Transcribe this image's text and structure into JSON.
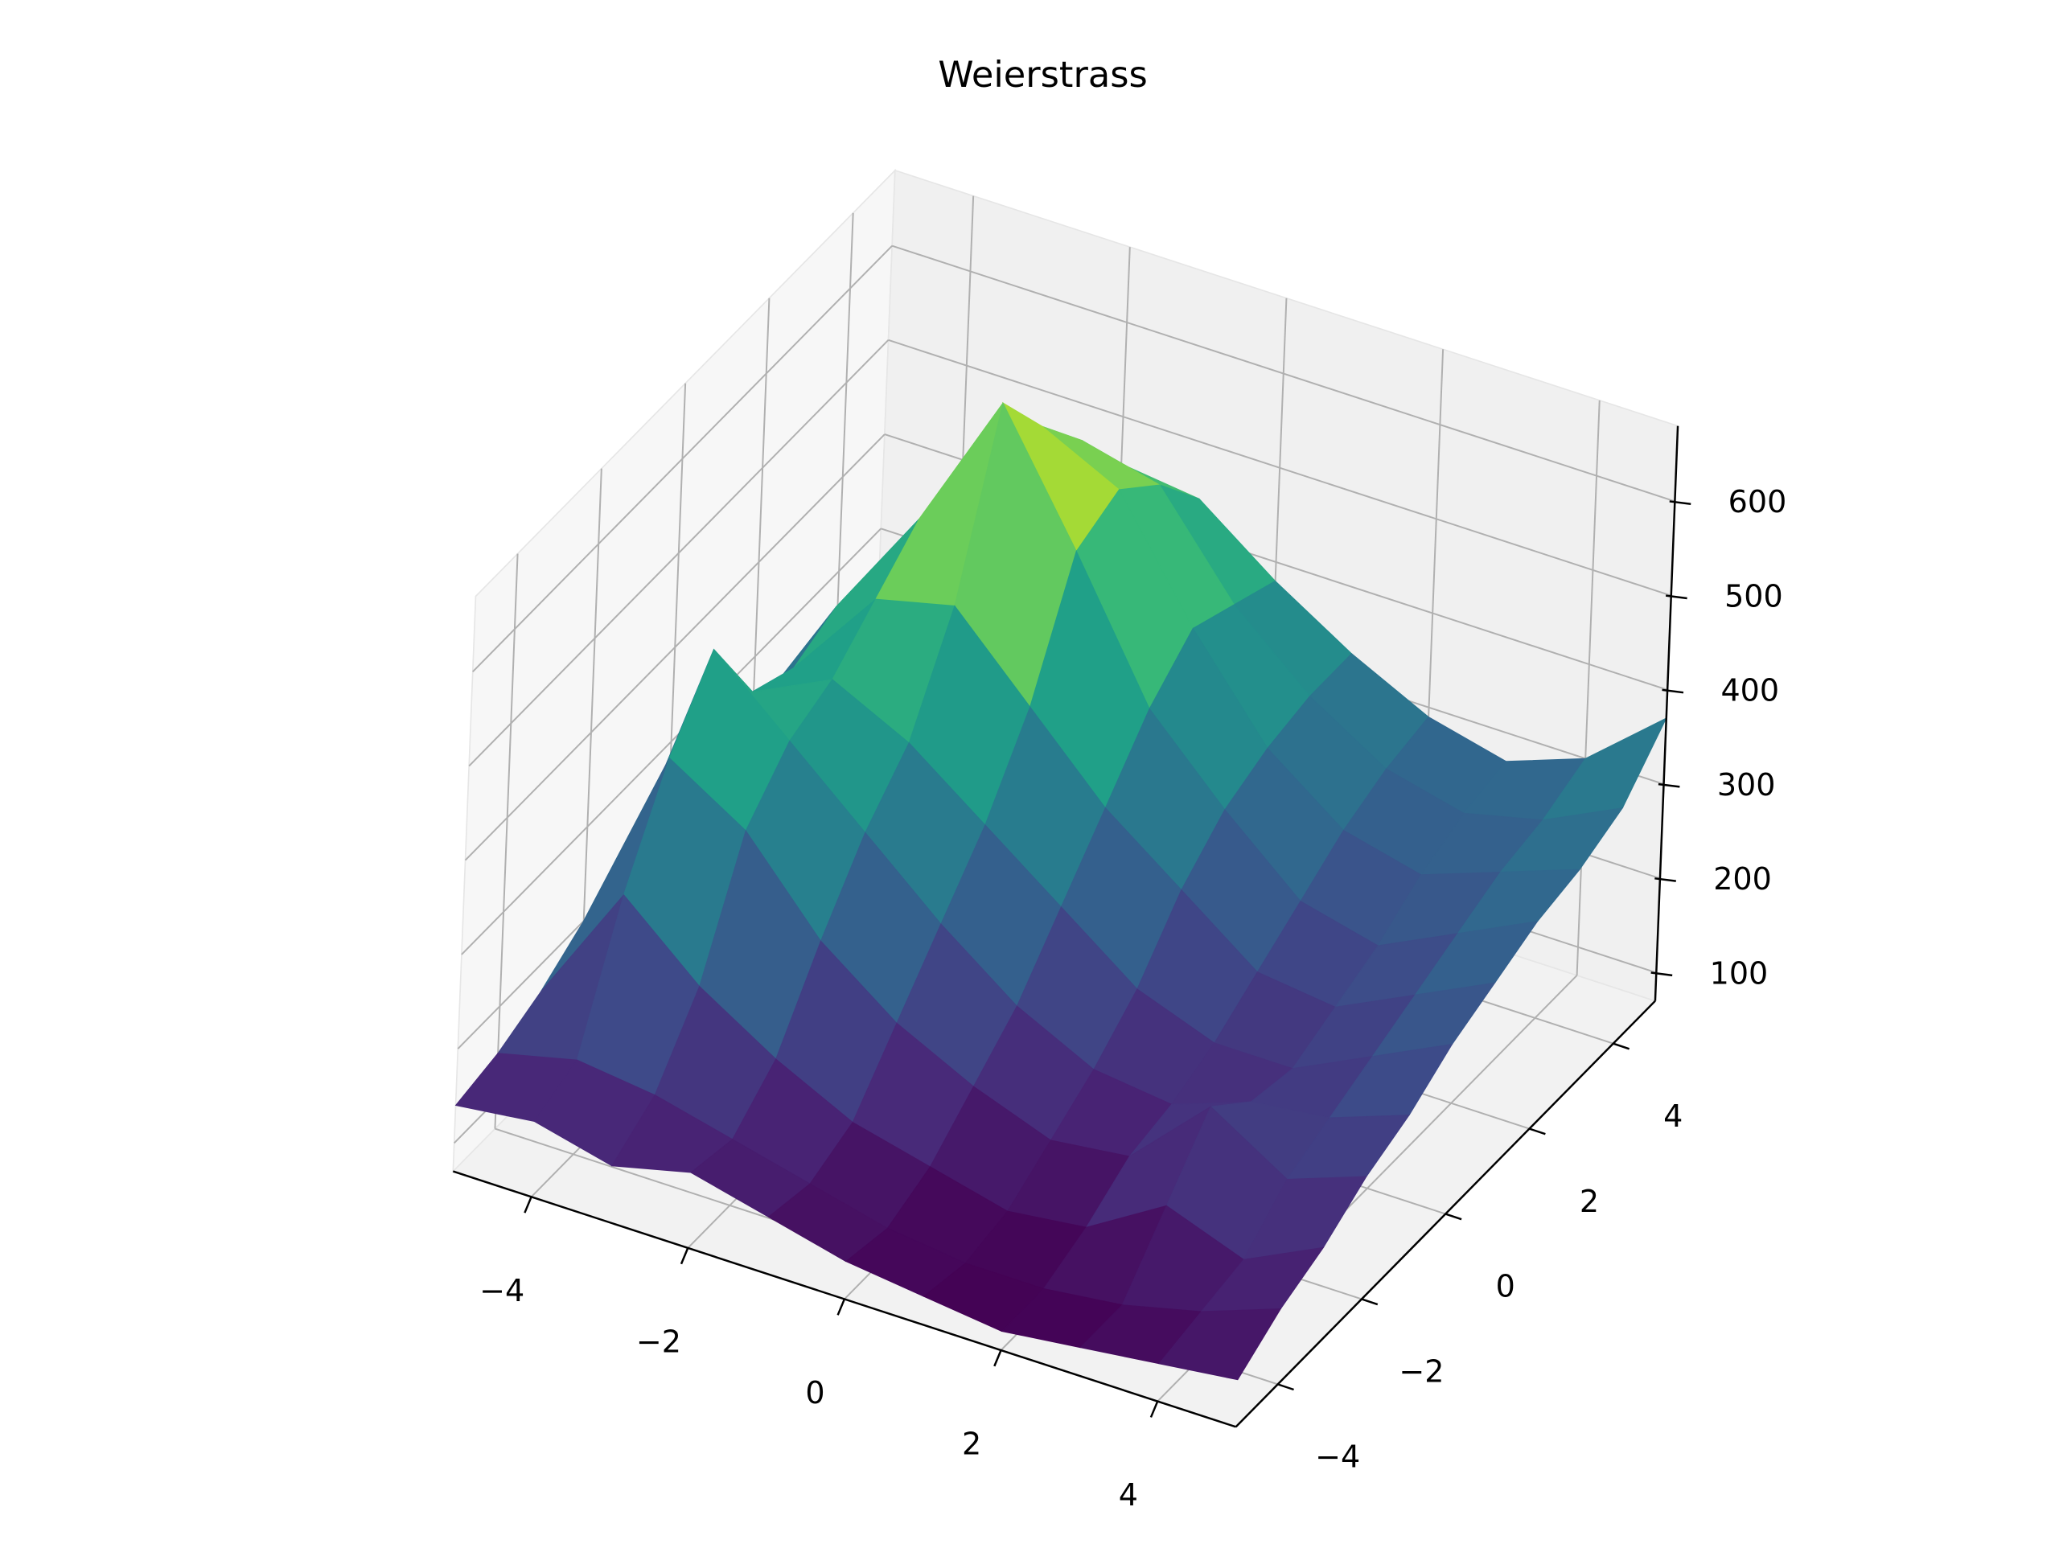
{
  "chart_data": {
    "type": "surface",
    "title": "Weierstrass",
    "colormap": "viridis",
    "x": [
      -5,
      -4,
      -3,
      -2,
      -1,
      0,
      1,
      2,
      3,
      4,
      5
    ],
    "y": [
      -5,
      -4,
      -3,
      -2,
      -1,
      0,
      1,
      2,
      3,
      4,
      5
    ],
    "z": [
      [
        140,
        150,
        130,
        150,
        130,
        110,
        100,
        90,
        100,
        110,
        120
      ],
      [
        150,
        170,
        160,
        140,
        120,
        100,
        90,
        90,
        100,
        120,
        150
      ],
      [
        170,
        300,
        230,
        180,
        140,
        120,
        100,
        110,
        160,
        130,
        170
      ],
      [
        200,
        400,
        350,
        260,
        200,
        160,
        130,
        140,
        220,
        170,
        200
      ],
      [
        220,
        470,
        400,
        330,
        260,
        200,
        160,
        150,
        180,
        190,
        220
      ],
      [
        230,
        380,
        420,
        380,
        320,
        260,
        200,
        170,
        170,
        210,
        250
      ],
      [
        240,
        360,
        460,
        480,
        400,
        320,
        260,
        200,
        190,
        230,
        270
      ],
      [
        240,
        380,
        500,
        650,
        520,
        380,
        300,
        230,
        210,
        250,
        290
      ],
      [
        230,
        360,
        480,
        580,
        540,
        420,
        320,
        260,
        240,
        270,
        300
      ],
      [
        220,
        330,
        430,
        520,
        500,
        400,
        330,
        280,
        260,
        280,
        320
      ],
      [
        210,
        300,
        380,
        450,
        440,
        380,
        330,
        290,
        270,
        300,
        370
      ]
    ],
    "xlim": [
      -5,
      5
    ],
    "ylim": [
      -5,
      5
    ],
    "zlim": [
      70,
      680
    ],
    "xticks": [
      {
        "value": -4,
        "label": "−4"
      },
      {
        "value": -2,
        "label": "−2"
      },
      0,
      2,
      4
    ],
    "yticks": [
      {
        "value": -4,
        "label": "−4"
      },
      {
        "value": -2,
        "label": "−2"
      },
      0,
      2,
      4
    ],
    "zticks": [
      100,
      200,
      300,
      400,
      500,
      600
    ],
    "grid": true
  }
}
